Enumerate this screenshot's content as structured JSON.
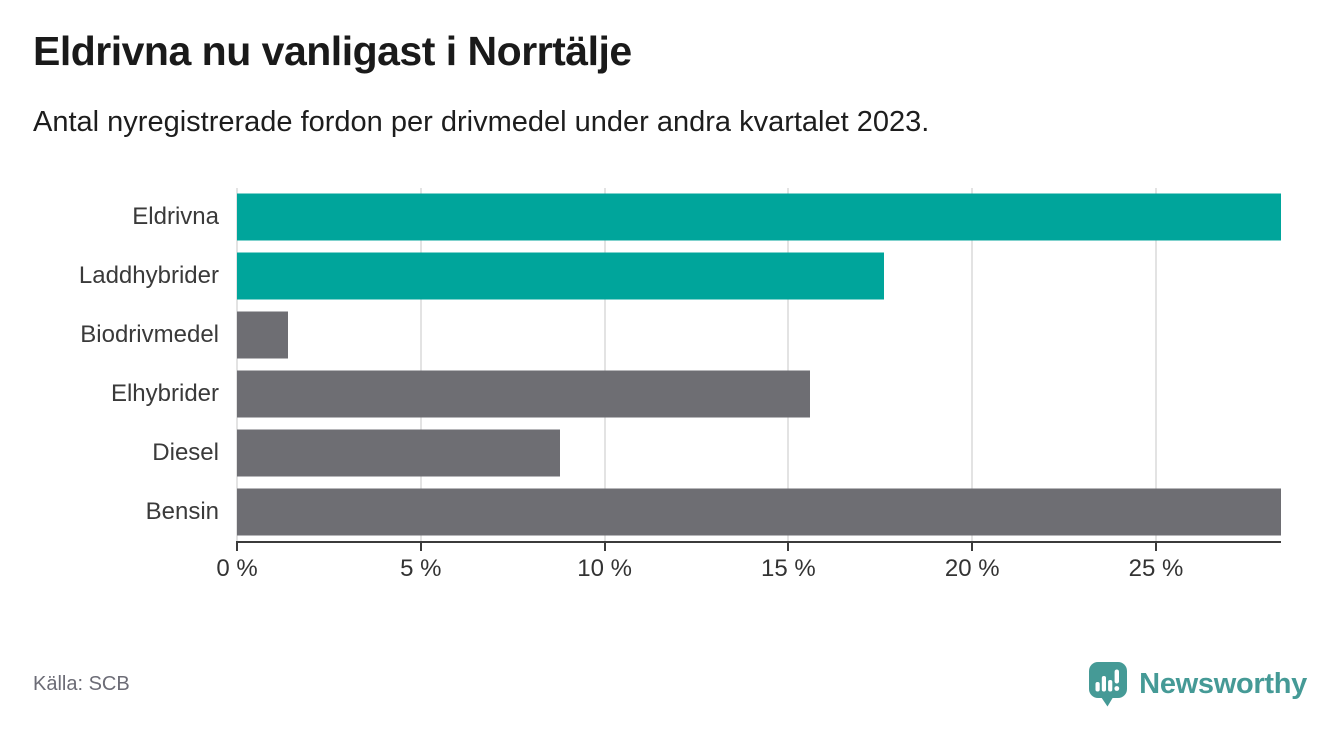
{
  "header": {
    "title": "Eldrivna nu vanligast i Norrtälje",
    "subtitle": "Antal nyregistrerade fordon per drivmedel under andra kvartalet 2023."
  },
  "chart_data": {
    "type": "bar",
    "orientation": "horizontal",
    "title": "Eldrivna nu vanligast i Norrtälje",
    "subtitle": "Antal nyregistrerade fordon per drivmedel under andra kvartalet 2023.",
    "categories": [
      "Eldrivna",
      "Laddhybrider",
      "Biodrivmedel",
      "Elhybrider",
      "Diesel",
      "Bensin"
    ],
    "values": [
      28.4,
      17.6,
      1.4,
      15.6,
      8.8,
      28.4
    ],
    "unit": "%",
    "bar_colors": [
      "#00a59b",
      "#00a59b",
      "#6e6e73",
      "#6e6e73",
      "#6e6e73",
      "#6e6e73"
    ],
    "x_ticks": [
      0,
      5,
      10,
      15,
      20,
      25
    ],
    "x_tick_labels": [
      "0 %",
      "5 %",
      "10 %",
      "15 %",
      "20 %",
      "25 %"
    ],
    "xlim": [
      0,
      28.4
    ],
    "grid": true,
    "legend": "none",
    "data_labels": "none"
  },
  "footer": {
    "source": "Källa: SCB",
    "brand": "Newsworthy"
  },
  "colors": {
    "accent_teal": "#00a59b",
    "neutral_gray": "#6e6e73",
    "brand_teal": "#459a96",
    "gridline": "#e3e3e3",
    "axis": "#3b3b3b",
    "title_text": "#1a1a1a",
    "muted_text": "#6c6c76"
  },
  "icons": {
    "newsworthy_logo_icon": "speech-bubble-with-bar-chart-and-exclamation"
  }
}
